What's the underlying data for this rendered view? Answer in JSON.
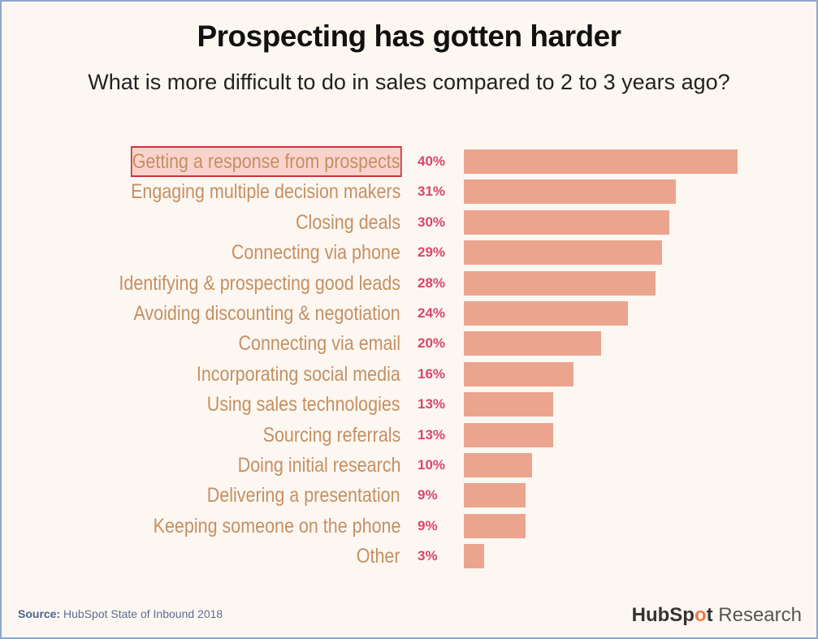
{
  "chart_data": {
    "type": "bar",
    "orientation": "horizontal",
    "title": "Prospecting has gotten harder",
    "subtitle": "What is more difficult to do in sales compared to 2 to 3 years ago?",
    "categories": [
      "Getting a response from prospects",
      "Engaging multiple decision makers",
      "Closing deals",
      "Connecting via phone",
      "Identifying & prospecting good leads",
      "Avoiding discounting & negotiation",
      "Connecting via email",
      "Incorporating social media",
      "Using sales technologies",
      "Sourcing referrals",
      "Doing initial research",
      "Delivering a presentation",
      "Keeping someone on the phone",
      "Other"
    ],
    "values": [
      40,
      31,
      30,
      29,
      28,
      24,
      20,
      16,
      13,
      13,
      10,
      9,
      9,
      3
    ],
    "value_labels": [
      "40%",
      "31%",
      "30%",
      "29%",
      "28%",
      "24%",
      "20%",
      "16%",
      "13%",
      "13%",
      "10%",
      "9%",
      "9%",
      "3%"
    ],
    "highlighted_category": "Getting a response from prospects",
    "bar_color": "#eba58e",
    "label_color": "#c49062",
    "value_color": "#d9466a",
    "highlight_color": "#c8343a",
    "grid": false
  },
  "footer": {
    "source_label": "Source:",
    "source_text": "HubSpot State of Inbound 2018",
    "brand_hub": "HubSp",
    "brand_o": "o",
    "brand_t": "t",
    "brand_research": " Research"
  }
}
